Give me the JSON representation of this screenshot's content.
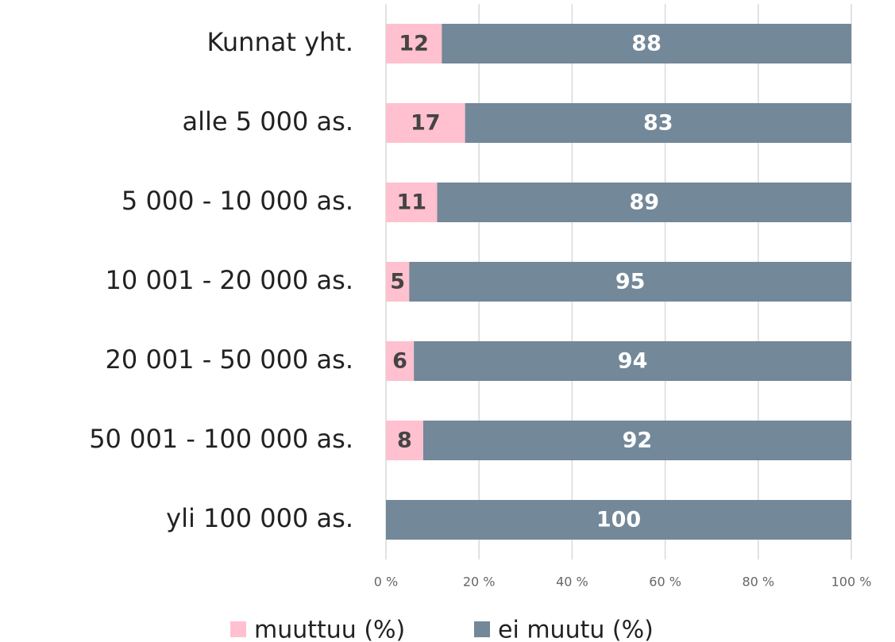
{
  "chart_data": {
    "type": "stacked_barh",
    "categories": [
      "Kunnat yht.",
      "alle 5 000 as.",
      "5 000 - 10 000 as.",
      "10 001 - 20 000 as.",
      "20 001 - 50 000 as.",
      "50 001 - 100 000 as.",
      "yli 100 000 as."
    ],
    "series": [
      {
        "name": "muuttuu (%)",
        "color": "#ffc0cf",
        "values": [
          12,
          17,
          11,
          5,
          6,
          8,
          0
        ]
      },
      {
        "name": "ei muutu (%)",
        "color": "#738899",
        "values": [
          88,
          83,
          89,
          95,
          94,
          92,
          100
        ]
      }
    ],
    "xlim": [
      0,
      100
    ],
    "xticks": [
      {
        "value": 0,
        "label": "0 %"
      },
      {
        "value": 20,
        "label": "20 %"
      },
      {
        "value": 40,
        "label": "40 %"
      },
      {
        "value": 60,
        "label": "60 %"
      },
      {
        "value": 80,
        "label": "80 %"
      },
      {
        "value": 100,
        "label": "100 %"
      }
    ],
    "grid": true,
    "legend": "bottom"
  }
}
